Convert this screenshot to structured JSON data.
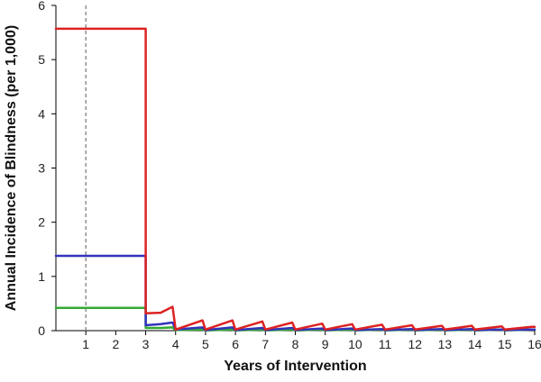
{
  "chart_data": {
    "type": "line",
    "title": "",
    "xlabel": "Years of Intervention",
    "ylabel": "Annual Incidence of Blindness (per 1,000)",
    "xlim": [
      0,
      16
    ],
    "ylim": [
      0,
      6
    ],
    "x_ticks": [
      "1",
      "2",
      "3",
      "4",
      "5",
      "6",
      "7",
      "8",
      "9",
      "10",
      "11",
      "12",
      "13",
      "14",
      "15",
      "16"
    ],
    "y_ticks": [
      "0",
      "1",
      "2",
      "3",
      "4",
      "5",
      "6"
    ],
    "grid": false,
    "legend": "none",
    "reference_line": {
      "x": 1,
      "style": "dashed",
      "color": "#808080"
    },
    "series": [
      {
        "color": "#33aa33",
        "x": [
          0,
          3,
          3,
          3.5,
          3.9,
          4,
          4.9,
          5,
          5.9,
          6,
          6.9,
          7,
          7.9,
          8,
          8.9,
          9,
          9.9,
          10,
          10.9,
          11,
          11.9,
          12,
          12.9,
          13,
          13.9,
          14,
          14.9,
          15,
          15.9,
          16
        ],
        "y": [
          0.42,
          0.42,
          0.05,
          0.05,
          0.06,
          0.01,
          0.02,
          0.005,
          0.02,
          0.005,
          0.02,
          0.005,
          0.02,
          0.005,
          0.02,
          0.005,
          0.02,
          0.005,
          0.02,
          0.005,
          0.02,
          0.005,
          0.02,
          0.005,
          0.02,
          0.005,
          0.02,
          0.005,
          0.02,
          0.02
        ]
      },
      {
        "color": "#3333bb",
        "x": [
          0,
          3,
          3,
          3.5,
          3.9,
          4,
          4.9,
          5,
          5.9,
          6,
          6.9,
          7,
          7.9,
          8,
          8.9,
          9,
          9.9,
          10,
          10.9,
          11,
          11.9,
          12,
          12.9,
          13,
          13.9,
          14,
          14.9,
          15,
          15.9,
          16
        ],
        "y": [
          1.38,
          1.38,
          0.1,
          0.12,
          0.15,
          0.02,
          0.06,
          0.01,
          0.06,
          0.01,
          0.05,
          0.01,
          0.05,
          0.01,
          0.04,
          0.01,
          0.04,
          0.01,
          0.03,
          0.01,
          0.03,
          0.01,
          0.03,
          0.01,
          0.03,
          0.01,
          0.02,
          0.01,
          0.02,
          0.02
        ]
      },
      {
        "color": "#dd2222",
        "x": [
          0,
          3,
          3,
          3.5,
          3.9,
          4,
          4.9,
          5,
          5.9,
          6,
          6.9,
          7,
          7.9,
          8,
          8.9,
          9,
          9.9,
          10,
          10.9,
          11,
          11.9,
          12,
          12.9,
          13,
          13.9,
          14,
          14.9,
          15,
          15.9,
          16
        ],
        "y": [
          5.57,
          5.57,
          0.32,
          0.33,
          0.44,
          0.02,
          0.19,
          0.02,
          0.19,
          0.02,
          0.17,
          0.02,
          0.15,
          0.02,
          0.13,
          0.02,
          0.12,
          0.02,
          0.11,
          0.02,
          0.1,
          0.02,
          0.09,
          0.02,
          0.09,
          0.02,
          0.08,
          0.02,
          0.07,
          0.07
        ]
      }
    ]
  }
}
